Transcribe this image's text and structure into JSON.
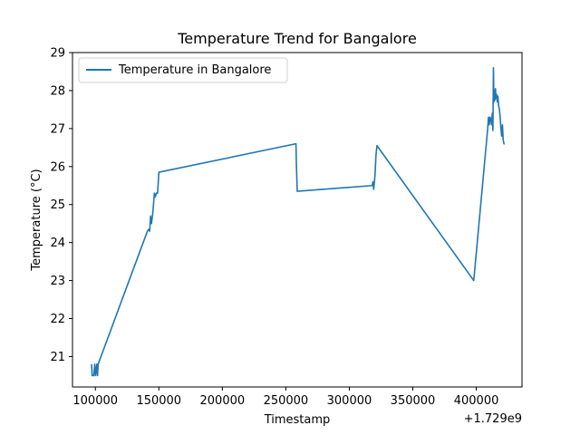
{
  "chart_data": {
    "type": "line",
    "title": "Temperature Trend for Bangalore",
    "xlabel": "Timestamp",
    "ylabel": "Temperature (°C)",
    "x_offset_label": "+1.729e9",
    "xlim": [
      82000,
      436000
    ],
    "ylim": [
      20.2,
      29.0
    ],
    "x_ticks": [
      100000,
      150000,
      200000,
      250000,
      300000,
      350000,
      400000
    ],
    "x_tick_labels": [
      "100000",
      "150000",
      "200000",
      "250000",
      "300000",
      "350000",
      "400000"
    ],
    "y_ticks": [
      21,
      22,
      23,
      24,
      25,
      26,
      27,
      28,
      29
    ],
    "y_tick_labels": [
      "21",
      "22",
      "23",
      "24",
      "25",
      "26",
      "27",
      "28",
      "29"
    ],
    "grid": false,
    "legend_position": "top-left",
    "series": [
      {
        "name": "Temperature in Bangalore",
        "color": "#1f77b4",
        "x": [
          97000,
          97500,
          98000,
          98800,
          99500,
          100200,
          100800,
          101200,
          101700,
          102200,
          141000,
          142000,
          142800,
          143500,
          144200,
          145000,
          145800,
          146500,
          147200,
          148000,
          149000,
          150000,
          258000,
          258300,
          259000,
          318000,
          318600,
          319200,
          319800,
          320300,
          321000,
          321800,
          398000,
          409000,
          409600,
          410200,
          410800,
          411400,
          412000,
          412600,
          413100,
          413500,
          413900,
          414300,
          414700,
          415100,
          415500,
          416000,
          416500,
          417000,
          417600,
          418200,
          418800,
          419400,
          420000,
          420600,
          421200,
          421800,
          422400
        ],
        "y": [
          20.8,
          20.5,
          20.5,
          20.5,
          20.8,
          20.5,
          20.7,
          20.8,
          20.5,
          20.8,
          24.3,
          24.35,
          24.3,
          24.7,
          24.5,
          24.7,
          25.0,
          25.3,
          25.2,
          25.3,
          25.3,
          25.85,
          26.6,
          26.1,
          25.35,
          25.5,
          25.6,
          25.4,
          25.6,
          25.8,
          26.3,
          26.55,
          23.0,
          27.0,
          27.3,
          27.1,
          27.3,
          27.25,
          27.1,
          27.4,
          26.95,
          28.6,
          27.7,
          28.0,
          27.75,
          28.05,
          27.8,
          27.9,
          27.7,
          27.85,
          27.6,
          27.5,
          27.3,
          27.0,
          26.8,
          27.1,
          26.7,
          26.6,
          26.6
        ]
      }
    ]
  }
}
